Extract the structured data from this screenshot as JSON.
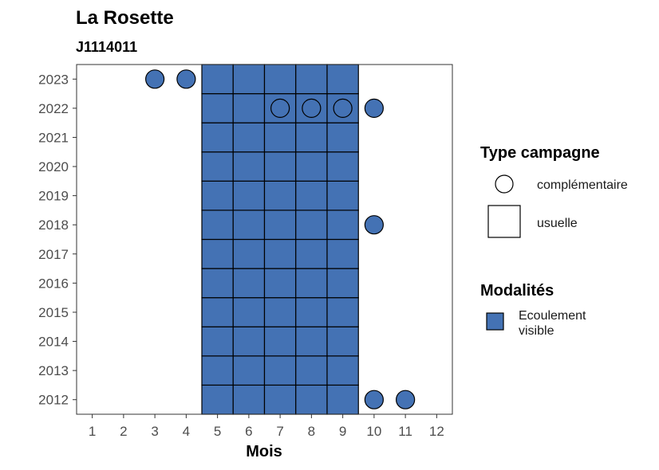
{
  "chart_data": {
    "type": "heatmap",
    "title": "La Rosette",
    "subtitle": "J1114011",
    "xlabel": "Mois",
    "ylabel": "",
    "x_ticks": [
      1,
      2,
      3,
      4,
      5,
      6,
      7,
      8,
      9,
      10,
      11,
      12
    ],
    "y_ticks": [
      2012,
      2013,
      2014,
      2015,
      2016,
      2017,
      2018,
      2019,
      2020,
      2021,
      2022,
      2023
    ],
    "xlim": [
      0.5,
      12.5
    ],
    "ylim": [
      2011.5,
      2023.5
    ],
    "fill_color": "#4472B4",
    "usuelle": {
      "months": [
        5,
        6,
        7,
        8,
        9
      ],
      "years": [
        2012,
        2013,
        2014,
        2015,
        2016,
        2017,
        2018,
        2019,
        2020,
        2021,
        2022,
        2023
      ]
    },
    "complementaire": [
      {
        "month": 3,
        "year": 2023
      },
      {
        "month": 4,
        "year": 2023
      },
      {
        "month": 7,
        "year": 2022
      },
      {
        "month": 8,
        "year": 2022
      },
      {
        "month": 9,
        "year": 2022
      },
      {
        "month": 10,
        "year": 2022
      },
      {
        "month": 10,
        "year": 2018
      },
      {
        "month": 10,
        "year": 2012
      },
      {
        "month": 11,
        "year": 2012
      }
    ],
    "legend": {
      "type_title": "Type campagne",
      "type_items": [
        "complémentaire",
        "usuelle"
      ],
      "modalites_title": "Modalités",
      "modalites_items": [
        "Ecoulement visible"
      ],
      "position": "right"
    }
  }
}
